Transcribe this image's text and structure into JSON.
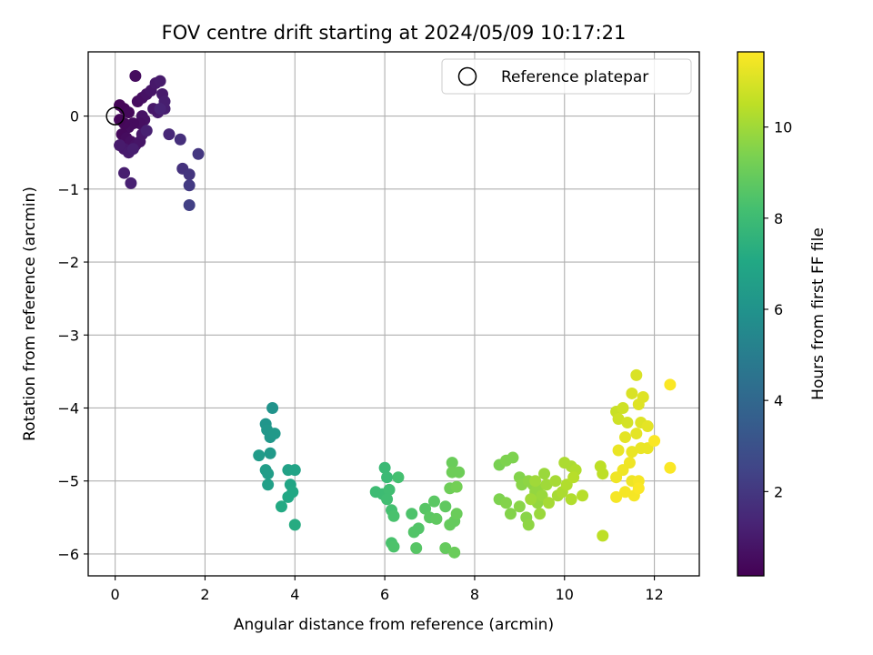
{
  "chart_data": {
    "type": "scatter",
    "title": "FOV centre drift starting at 2024/05/09 10:17:21",
    "xlabel": "Angular distance from reference (arcmin)",
    "ylabel": "Rotation from reference (arcmin)",
    "xlim": [
      -0.6,
      13.0
    ],
    "ylim": [
      -6.3,
      0.88
    ],
    "xticks": [
      0,
      2,
      4,
      6,
      8,
      10,
      12
    ],
    "yticks": [
      0,
      -1,
      -2,
      -3,
      -4,
      -5,
      -6
    ],
    "grid": true,
    "legend": {
      "position": "top-right",
      "entries": [
        "Reference platepar"
      ]
    },
    "colorbar": {
      "label": "Hours from first FF file",
      "range": [
        0.15,
        11.65
      ],
      "ticks": [
        2,
        4,
        6,
        8,
        10
      ],
      "colormap": "viridis"
    },
    "reference_point": {
      "x": 0,
      "y": 0
    },
    "points": [
      {
        "x": 0.1,
        "y": 0.15,
        "h": 0.3
      },
      {
        "x": 0.2,
        "y": 0.1,
        "h": 0.3
      },
      {
        "x": 0.3,
        "y": 0.05,
        "h": 0.4
      },
      {
        "x": 0.45,
        "y": 0.55,
        "h": 0.5
      },
      {
        "x": 0.5,
        "y": 0.2,
        "h": 0.5
      },
      {
        "x": 0.6,
        "y": 0.25,
        "h": 0.6
      },
      {
        "x": 0.7,
        "y": 0.3,
        "h": 0.7
      },
      {
        "x": 0.8,
        "y": 0.35,
        "h": 0.8
      },
      {
        "x": 0.9,
        "y": 0.45,
        "h": 0.9
      },
      {
        "x": 1.0,
        "y": 0.48,
        "h": 1.0
      },
      {
        "x": 1.05,
        "y": 0.3,
        "h": 1.0
      },
      {
        "x": 1.1,
        "y": 0.2,
        "h": 1.1
      },
      {
        "x": 1.1,
        "y": 0.1,
        "h": 1.1
      },
      {
        "x": 0.95,
        "y": 0.05,
        "h": 1.0
      },
      {
        "x": 0.85,
        "y": 0.1,
        "h": 0.9
      },
      {
        "x": 0.6,
        "y": 0.0,
        "h": 0.7
      },
      {
        "x": 0.65,
        "y": -0.05,
        "h": 0.7
      },
      {
        "x": 0.55,
        "y": -0.1,
        "h": 0.6
      },
      {
        "x": 0.4,
        "y": -0.1,
        "h": 0.5
      },
      {
        "x": 0.3,
        "y": -0.15,
        "h": 0.5
      },
      {
        "x": 0.2,
        "y": -0.1,
        "h": 0.4
      },
      {
        "x": 0.1,
        "y": -0.05,
        "h": 0.3
      },
      {
        "x": 0.15,
        "y": -0.25,
        "h": 0.4
      },
      {
        "x": 0.25,
        "y": -0.3,
        "h": 0.5
      },
      {
        "x": 0.35,
        "y": -0.35,
        "h": 0.6
      },
      {
        "x": 0.45,
        "y": -0.4,
        "h": 0.7
      },
      {
        "x": 0.55,
        "y": -0.35,
        "h": 0.8
      },
      {
        "x": 0.6,
        "y": -0.25,
        "h": 0.9
      },
      {
        "x": 0.2,
        "y": -0.45,
        "h": 0.9
      },
      {
        "x": 0.1,
        "y": -0.4,
        "h": 1.0
      },
      {
        "x": 0.3,
        "y": -0.5,
        "h": 1.0
      },
      {
        "x": 0.4,
        "y": -0.45,
        "h": 1.1
      },
      {
        "x": 0.2,
        "y": -0.78,
        "h": 1.1
      },
      {
        "x": 0.35,
        "y": -0.92,
        "h": 1.2
      },
      {
        "x": 0.7,
        "y": -0.2,
        "h": 1.2
      },
      {
        "x": 1.0,
        "y": 0.1,
        "h": 1.3
      },
      {
        "x": 1.2,
        "y": -0.25,
        "h": 1.4
      },
      {
        "x": 1.45,
        "y": -0.32,
        "h": 1.7
      },
      {
        "x": 1.5,
        "y": -0.72,
        "h": 1.8
      },
      {
        "x": 1.65,
        "y": -0.8,
        "h": 1.9
      },
      {
        "x": 1.85,
        "y": -0.52,
        "h": 2.0
      },
      {
        "x": 1.65,
        "y": -0.95,
        "h": 2.1
      },
      {
        "x": 1.65,
        "y": -1.22,
        "h": 2.3
      },
      {
        "x": 3.5,
        "y": -4.0,
        "h": 6.0
      },
      {
        "x": 3.35,
        "y": -4.22,
        "h": 6.1
      },
      {
        "x": 3.38,
        "y": -4.3,
        "h": 6.2
      },
      {
        "x": 3.45,
        "y": -4.4,
        "h": 6.2
      },
      {
        "x": 3.55,
        "y": -4.35,
        "h": 6.3
      },
      {
        "x": 3.45,
        "y": -4.62,
        "h": 6.3
      },
      {
        "x": 3.2,
        "y": -4.65,
        "h": 6.4
      },
      {
        "x": 3.35,
        "y": -4.85,
        "h": 6.5
      },
      {
        "x": 3.4,
        "y": -4.9,
        "h": 6.5
      },
      {
        "x": 3.4,
        "y": -5.05,
        "h": 6.6
      },
      {
        "x": 3.85,
        "y": -4.85,
        "h": 6.7
      },
      {
        "x": 4.0,
        "y": -4.85,
        "h": 6.8
      },
      {
        "x": 3.9,
        "y": -5.05,
        "h": 6.9
      },
      {
        "x": 3.95,
        "y": -5.15,
        "h": 7.0
      },
      {
        "x": 3.85,
        "y": -5.22,
        "h": 7.0
      },
      {
        "x": 3.7,
        "y": -5.35,
        "h": 7.1
      },
      {
        "x": 4.0,
        "y": -5.6,
        "h": 7.2
      },
      {
        "x": 6.0,
        "y": -4.82,
        "h": 7.9
      },
      {
        "x": 6.05,
        "y": -4.95,
        "h": 7.9
      },
      {
        "x": 5.8,
        "y": -5.15,
        "h": 8.0
      },
      {
        "x": 5.95,
        "y": -5.18,
        "h": 8.0
      },
      {
        "x": 6.1,
        "y": -5.12,
        "h": 8.1
      },
      {
        "x": 6.05,
        "y": -5.25,
        "h": 8.1
      },
      {
        "x": 6.3,
        "y": -4.95,
        "h": 8.2
      },
      {
        "x": 6.15,
        "y": -5.4,
        "h": 8.2
      },
      {
        "x": 6.2,
        "y": -5.48,
        "h": 8.3
      },
      {
        "x": 6.15,
        "y": -5.85,
        "h": 8.3
      },
      {
        "x": 6.2,
        "y": -5.9,
        "h": 8.4
      },
      {
        "x": 6.6,
        "y": -5.45,
        "h": 8.4
      },
      {
        "x": 6.65,
        "y": -5.7,
        "h": 8.5
      },
      {
        "x": 6.75,
        "y": -5.65,
        "h": 8.5
      },
      {
        "x": 6.7,
        "y": -5.92,
        "h": 8.6
      },
      {
        "x": 6.9,
        "y": -5.38,
        "h": 8.6
      },
      {
        "x": 7.0,
        "y": -5.5,
        "h": 8.7
      },
      {
        "x": 7.1,
        "y": -5.28,
        "h": 8.7
      },
      {
        "x": 7.15,
        "y": -5.52,
        "h": 8.8
      },
      {
        "x": 7.35,
        "y": -5.35,
        "h": 8.8
      },
      {
        "x": 7.35,
        "y": -5.92,
        "h": 8.9
      },
      {
        "x": 7.45,
        "y": -5.6,
        "h": 8.9
      },
      {
        "x": 7.55,
        "y": -5.55,
        "h": 8.9
      },
      {
        "x": 7.6,
        "y": -5.45,
        "h": 9.0
      },
      {
        "x": 7.55,
        "y": -5.98,
        "h": 9.0
      },
      {
        "x": 7.5,
        "y": -4.75,
        "h": 9.0
      },
      {
        "x": 7.5,
        "y": -4.88,
        "h": 9.1
      },
      {
        "x": 7.65,
        "y": -4.88,
        "h": 9.1
      },
      {
        "x": 7.45,
        "y": -5.1,
        "h": 9.1
      },
      {
        "x": 7.6,
        "y": -5.08,
        "h": 9.2
      },
      {
        "x": 8.55,
        "y": -4.78,
        "h": 9.3
      },
      {
        "x": 8.7,
        "y": -4.72,
        "h": 9.4
      },
      {
        "x": 8.85,
        "y": -4.68,
        "h": 9.4
      },
      {
        "x": 8.55,
        "y": -5.25,
        "h": 9.4
      },
      {
        "x": 8.7,
        "y": -5.3,
        "h": 9.5
      },
      {
        "x": 8.8,
        "y": -5.45,
        "h": 9.5
      },
      {
        "x": 9.0,
        "y": -4.95,
        "h": 9.5
      },
      {
        "x": 9.05,
        "y": -5.05,
        "h": 9.6
      },
      {
        "x": 9.0,
        "y": -5.35,
        "h": 9.6
      },
      {
        "x": 9.15,
        "y": -5.5,
        "h": 9.6
      },
      {
        "x": 9.2,
        "y": -5.6,
        "h": 9.7
      },
      {
        "x": 9.2,
        "y": -5.0,
        "h": 9.7
      },
      {
        "x": 9.3,
        "y": -5.05,
        "h": 9.7
      },
      {
        "x": 9.35,
        "y": -5.15,
        "h": 9.8
      },
      {
        "x": 9.4,
        "y": -5.1,
        "h": 9.8
      },
      {
        "x": 9.4,
        "y": -5.3,
        "h": 9.8
      },
      {
        "x": 9.45,
        "y": -5.45,
        "h": 9.9
      },
      {
        "x": 9.5,
        "y": -5.2,
        "h": 9.9
      },
      {
        "x": 9.55,
        "y": -4.9,
        "h": 9.9
      },
      {
        "x": 9.6,
        "y": -5.05,
        "h": 10.0
      },
      {
        "x": 9.35,
        "y": -5.0,
        "h": 10.0
      },
      {
        "x": 9.25,
        "y": -5.25,
        "h": 10.0
      },
      {
        "x": 9.65,
        "y": -5.3,
        "h": 10.1
      },
      {
        "x": 9.8,
        "y": -5.0,
        "h": 10.1
      },
      {
        "x": 9.85,
        "y": -5.2,
        "h": 10.1
      },
      {
        "x": 9.95,
        "y": -5.15,
        "h": 10.2
      },
      {
        "x": 10.0,
        "y": -4.75,
        "h": 10.2
      },
      {
        "x": 10.15,
        "y": -4.8,
        "h": 10.2
      },
      {
        "x": 10.25,
        "y": -4.85,
        "h": 10.3
      },
      {
        "x": 10.05,
        "y": -5.05,
        "h": 10.3
      },
      {
        "x": 10.15,
        "y": -5.25,
        "h": 10.3
      },
      {
        "x": 10.4,
        "y": -5.2,
        "h": 10.4
      },
      {
        "x": 10.2,
        "y": -4.95,
        "h": 10.4
      },
      {
        "x": 10.8,
        "y": -4.8,
        "h": 10.5
      },
      {
        "x": 10.85,
        "y": -4.9,
        "h": 10.5
      },
      {
        "x": 10.85,
        "y": -5.75,
        "h": 10.5
      },
      {
        "x": 11.15,
        "y": -4.05,
        "h": 10.7
      },
      {
        "x": 11.2,
        "y": -4.15,
        "h": 10.8
      },
      {
        "x": 11.3,
        "y": -4.0,
        "h": 10.8
      },
      {
        "x": 11.4,
        "y": -4.2,
        "h": 10.9
      },
      {
        "x": 11.5,
        "y": -3.8,
        "h": 11.0
      },
      {
        "x": 11.6,
        "y": -3.55,
        "h": 11.0
      },
      {
        "x": 11.65,
        "y": -3.95,
        "h": 11.1
      },
      {
        "x": 11.75,
        "y": -3.85,
        "h": 11.1
      },
      {
        "x": 11.7,
        "y": -4.2,
        "h": 11.1
      },
      {
        "x": 11.85,
        "y": -4.25,
        "h": 11.2
      },
      {
        "x": 11.6,
        "y": -4.35,
        "h": 11.2
      },
      {
        "x": 11.35,
        "y": -4.4,
        "h": 11.2
      },
      {
        "x": 11.5,
        "y": -4.6,
        "h": 11.3
      },
      {
        "x": 11.7,
        "y": -4.55,
        "h": 11.3
      },
      {
        "x": 11.85,
        "y": -4.55,
        "h": 11.3
      },
      {
        "x": 11.2,
        "y": -4.58,
        "h": 11.3
      },
      {
        "x": 11.45,
        "y": -4.75,
        "h": 11.4
      },
      {
        "x": 11.3,
        "y": -4.85,
        "h": 11.4
      },
      {
        "x": 11.15,
        "y": -4.95,
        "h": 11.4
      },
      {
        "x": 11.5,
        "y": -5.0,
        "h": 11.4
      },
      {
        "x": 11.65,
        "y": -5.0,
        "h": 11.5
      },
      {
        "x": 11.35,
        "y": -5.15,
        "h": 11.5
      },
      {
        "x": 11.55,
        "y": -5.2,
        "h": 11.5
      },
      {
        "x": 11.15,
        "y": -5.22,
        "h": 11.5
      },
      {
        "x": 11.65,
        "y": -5.1,
        "h": 11.6
      },
      {
        "x": 12.0,
        "y": -4.45,
        "h": 11.6
      },
      {
        "x": 12.35,
        "y": -3.68,
        "h": 11.6
      },
      {
        "x": 12.35,
        "y": -4.82,
        "h": 11.6
      }
    ]
  }
}
